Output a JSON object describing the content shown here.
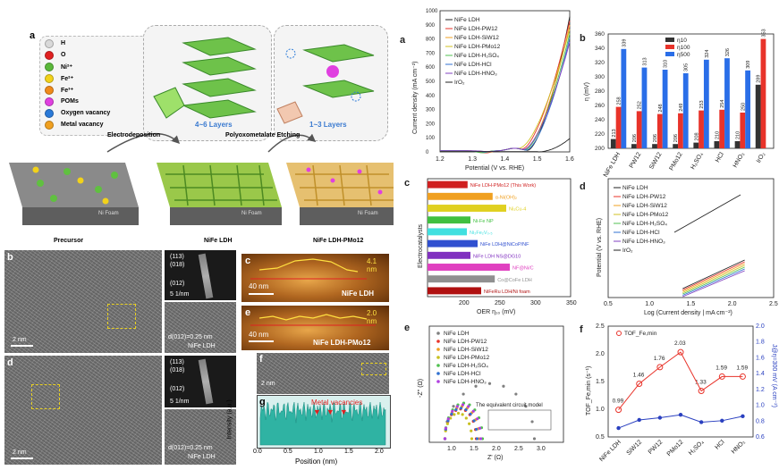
{
  "panel_a_left": {
    "label": "a",
    "legend": [
      {
        "sym": "H",
        "color": "#d9d9d9"
      },
      {
        "sym": "O",
        "color": "#e02020"
      },
      {
        "sym": "Ni²⁺",
        "color": "#5ab83a"
      },
      {
        "sym": "Fe²⁺",
        "color": "#f2d21a"
      },
      {
        "sym": "Fe³⁺",
        "color": "#f08a1a"
      },
      {
        "sym": "POMs",
        "color": "#e040e0"
      },
      {
        "sym": "Oxygen vacancy",
        "color": "#2a7ad8"
      },
      {
        "sym": "Metal vacancy",
        "color": "#f0a020"
      }
    ],
    "layers1": "4~6 Layers",
    "layers2": "1~3 Layers",
    "step1": "Electrodeposition",
    "step2": "Polyoxometalate Etching",
    "nifoam": "Ni Foam",
    "caption_precursor": "Precursor",
    "caption_ldh": "NiFe LDH",
    "caption_pmo": "NiFe LDH-PMo12"
  },
  "tem": {
    "b_label": "b",
    "d_label": "d",
    "scale": "2 nm",
    "saed_113": "(113)",
    "saed_018": "(018)",
    "saed_012": "(012)",
    "saed_scale": "5 1/nm",
    "d_spacing": "d(012)=0.25 nm",
    "sample": "NiFe LDH"
  },
  "afm": {
    "c_label": "c",
    "c_height": "4.1",
    "c_unit": "nm",
    "c_scale": "40 nm",
    "c_name": "NiFe LDH",
    "e_label": "e",
    "e_height": "2.0",
    "e_unit": "nm",
    "e_scale": "40 nm",
    "e_name": "NiFe LDH-PMo12",
    "f_label": "f",
    "f_scale": "2 nm",
    "g_label": "g",
    "g_annot": "Metal vacancies",
    "g_xlabel": "Position (nm)",
    "g_ylabel": "Intensity (a.u.)",
    "g_ticks": [
      "0.0",
      "0.5",
      "1.0",
      "1.5",
      "2.0"
    ]
  },
  "chart_data": [
    {
      "id": "a",
      "type": "line",
      "xlabel": "Potential (V vs. RHE)",
      "ylabel": "Current density (mA cm⁻²)",
      "xlim": [
        1.2,
        1.6
      ],
      "ylim": [
        0,
        1000
      ],
      "xticks": [
        "1.2",
        "1.3",
        "1.4",
        "1.5",
        "1.6"
      ],
      "yticks": [
        "0",
        "100",
        "200",
        "300",
        "400",
        "500",
        "600",
        "700",
        "800",
        "900",
        "1000"
      ],
      "series": [
        {
          "name": "NiFe LDH",
          "color": "#222222"
        },
        {
          "name": "NiFe LDH-PW12",
          "color": "#e8332a"
        },
        {
          "name": "NiFe LDH-SiW12",
          "color": "#f0a020"
        },
        {
          "name": "NiFe LDH-PMo12",
          "color": "#d0c020"
        },
        {
          "name": "NiFe LDH-H₂SO₄",
          "color": "#50c050"
        },
        {
          "name": "NiFe LDH-HCl",
          "color": "#3070d0"
        },
        {
          "name": "NiFe LDH-HNO₃",
          "color": "#8040c0"
        },
        {
          "name": "IrO₂",
          "color": "#222222"
        }
      ]
    },
    {
      "id": "b",
      "type": "bar",
      "ylabel": "η (mV)",
      "ylim": [
        200,
        360
      ],
      "yticks": [
        "200",
        "220",
        "240",
        "260",
        "280",
        "300",
        "320",
        "340",
        "360"
      ],
      "categories": [
        "NiFe LDH",
        "PW12",
        "SiW12",
        "PMo12",
        "H₂SO₄",
        "HCl",
        "HNO₃",
        "IrO₂"
      ],
      "series": [
        {
          "name": "η10",
          "color": "#333333",
          "values": [
            213,
            206,
            206,
            206,
            208,
            210,
            210,
            289
          ]
        },
        {
          "name": "η100",
          "color": "#e8332a",
          "values": [
            258,
            252,
            248,
            249,
            253,
            254,
            250,
            353
          ]
        },
        {
          "name": "η500",
          "color": "#2a6ee8",
          "values": [
            339,
            313,
            310,
            305,
            324,
            326,
            309,
            null
          ]
        }
      ]
    },
    {
      "id": "c",
      "type": "bar",
      "xlabel": "OER η₁₀ (mV)",
      "ylabel": "Electrocatalysts",
      "xlim": [
        150,
        350
      ],
      "xticks": [
        "200",
        "250",
        "300",
        "350"
      ],
      "categories": [
        "NiFe LDH-PMo12 (This Work)",
        "α-Ni(OH)₂",
        "Ni₃Cu-4",
        "Ni-Fe NP",
        "Ni₂Fe₂V₀.₅",
        "NiFe LDH@NiCoP/NF",
        "NiFe LDH NS@DG10",
        "NF@Ni/C",
        "Co@CoFe LDH",
        "NiFeRu LDH/Ni foam"
      ],
      "values": [
        206,
        241,
        260,
        210,
        205,
        220,
        210,
        265,
        244,
        225
      ],
      "colors": [
        "#d02020",
        "#f0a020",
        "#e0d020",
        "#40c040",
        "#40e0e0",
        "#3050d0",
        "#8030c0",
        "#e040c0",
        "#909090",
        "#b01010"
      ]
    },
    {
      "id": "d",
      "type": "line",
      "xlabel": "Log (Current density | mA cm⁻²)",
      "ylabel": "Potential (V vs. RHE)",
      "xlim": [
        0.5,
        2.5
      ],
      "xticks": [
        "0.5",
        "1.0",
        "1.5",
        "2.0",
        "2.5"
      ],
      "series": [
        {
          "name": "NiFe LDH",
          "color": "#222222"
        },
        {
          "name": "NiFe LDH-PW12",
          "color": "#e8332a"
        },
        {
          "name": "NiFe LDH-SiW12",
          "color": "#f0a020"
        },
        {
          "name": "NiFe LDH-PMo12",
          "color": "#d0c020"
        },
        {
          "name": "NiFe LDH-H₂SO₄",
          "color": "#50c050"
        },
        {
          "name": "NiFe LDH-HCl",
          "color": "#3070d0"
        },
        {
          "name": "NiFe LDH-HNO₃",
          "color": "#8040c0"
        },
        {
          "name": "IrO₂",
          "color": "#222222"
        }
      ]
    },
    {
      "id": "e",
      "type": "scatter",
      "xlabel": "Z' (Ω)",
      "ylabel": "-Z'' (Ω)",
      "xlim": [
        0.5,
        3.5
      ],
      "xticks": [
        "1.0",
        "1.5",
        "2.0",
        "2.5",
        "3.0"
      ],
      "annot": "The equivalent circuit model",
      "series": [
        {
          "name": "NiFe LDH",
          "color": "#808080"
        },
        {
          "name": "NiFe LDH-PW12",
          "color": "#e8332a"
        },
        {
          "name": "NiFe LDH-SiW12",
          "color": "#f0a020"
        },
        {
          "name": "NiFe LDH-PMo12",
          "color": "#c8c020"
        },
        {
          "name": "NiFe LDH-H₂SO₄",
          "color": "#50c050"
        },
        {
          "name": "NiFe LDH-HCl",
          "color": "#3070d0"
        },
        {
          "name": "NiFe LDH-HNO₃",
          "color": "#b040e0"
        }
      ]
    },
    {
      "id": "f",
      "type": "line",
      "ylabel": "TOF_Fe,min (s⁻¹)",
      "y2label": "J@η=300 mV (A cm⁻²)",
      "categories": [
        "NiFe LDH",
        "SiW12",
        "PW12",
        "PMo12",
        "H₂SO₄",
        "HCl",
        "HNO₃"
      ],
      "ylim": [
        0.5,
        2.5
      ],
      "yticks": [
        "0.5",
        "1.0",
        "1.5",
        "2.0",
        "2.5"
      ],
      "y2ticks": [
        "0.6",
        "0.8",
        "1.0",
        "1.2",
        "1.4",
        "1.6",
        "1.8",
        "2.0"
      ],
      "tof": [
        0.99,
        1.46,
        1.76,
        2.03,
        1.33,
        1.59,
        1.59
      ],
      "tof_labels": [
        "0.99",
        "1.46",
        "1.76",
        "2.03",
        "1.33",
        "1.59",
        "1.59"
      ],
      "legend": "TOF_Fe,min"
    }
  ]
}
